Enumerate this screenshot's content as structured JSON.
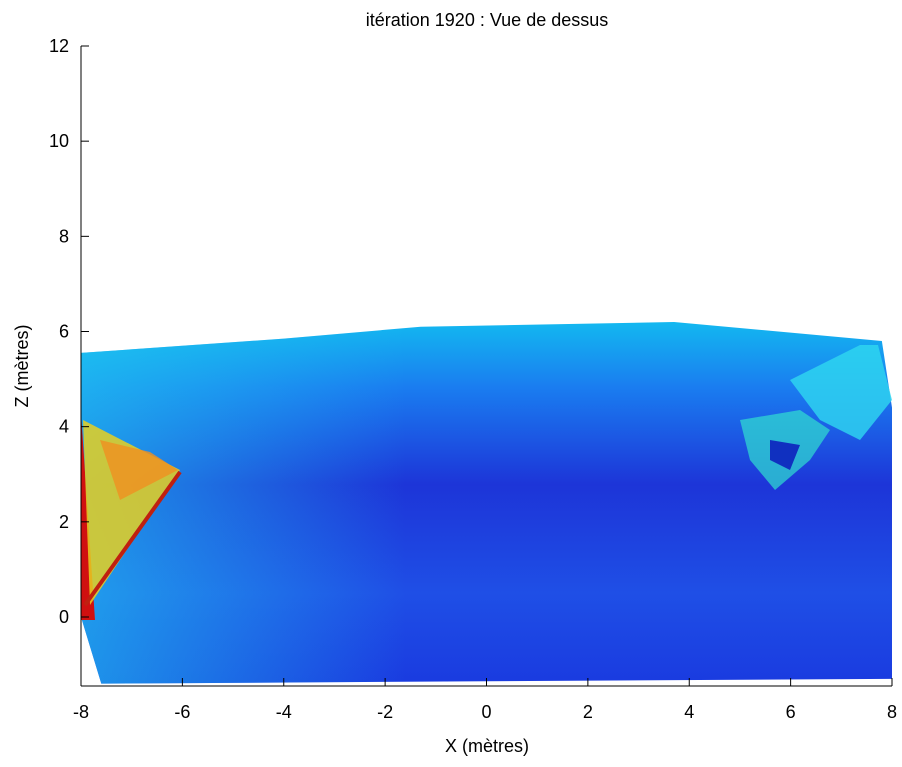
{
  "chart_data": {
    "type": "surface",
    "title": "itération 1920 : Vue de dessus",
    "x_label": "X (mètres)",
    "y_label": "Z (mètres)",
    "x": [
      -8,
      -4,
      -1.3,
      3.7,
      7.8,
      8,
      8,
      -7.6,
      -8
    ],
    "values": [
      5.55,
      5.85,
      6.1,
      6.2,
      5.8,
      4.4,
      -1.3,
      -1.4,
      0
    ],
    "color": "#1f4fe6",
    "xlim": [
      -8,
      8
    ],
    "xticks": [
      -8,
      -6,
      -4,
      -2,
      0,
      2,
      4,
      6,
      8
    ],
    "ylim": [
      -1.45,
      12
    ],
    "yticks": [
      0,
      2,
      4,
      6,
      8,
      10,
      12
    ],
    "grid": false
  }
}
